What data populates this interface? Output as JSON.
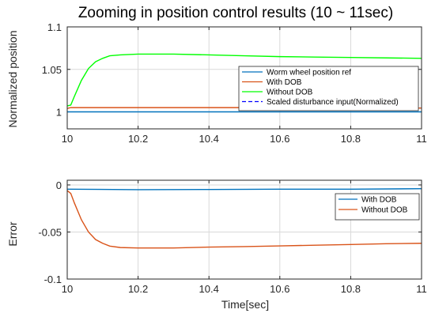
{
  "figure": {
    "title": "Zooming in position control results (10 ~ 11sec)"
  },
  "chart_data": [
    {
      "type": "line",
      "ylabel": "Normalized position",
      "xlabel": "",
      "xlim": [
        10,
        11
      ],
      "ylim": [
        0.98,
        1.1
      ],
      "x_ticks": [
        "10",
        "10.2",
        "10.4",
        "10.6",
        "10.8",
        "11"
      ],
      "y_ticks": [
        {
          "value": 1,
          "label": "1"
        },
        {
          "value": 1.05,
          "label": "1.05"
        },
        {
          "value": 1.1,
          "label": "1.1"
        }
      ],
      "grid": true,
      "legend": "right",
      "series": [
        {
          "name": "Worm wheel position ref",
          "color": "#0072bd",
          "dash": false,
          "x": [
            10,
            11
          ],
          "y": [
            1.0,
            1.0
          ]
        },
        {
          "name": "With DOB",
          "color": "#d95319",
          "dash": false,
          "x": [
            10,
            10.01,
            10.03,
            10.1,
            10.2,
            10.4,
            10.6,
            10.8,
            11
          ],
          "y": [
            1.004,
            1.005,
            1.005,
            1.005,
            1.005,
            1.005,
            1.005,
            1.0045,
            1.0045
          ]
        },
        {
          "name": "Without DOB",
          "color": "#00ff00",
          "dash": false,
          "x": [
            10,
            10.01,
            10.02,
            10.04,
            10.06,
            10.08,
            10.1,
            10.12,
            10.15,
            10.2,
            10.3,
            10.4,
            10.5,
            10.6,
            10.7,
            10.8,
            10.9,
            11
          ],
          "y": [
            1.007,
            1.008,
            1.018,
            1.037,
            1.051,
            1.059,
            1.063,
            1.066,
            1.067,
            1.068,
            1.068,
            1.067,
            1.066,
            1.065,
            1.0645,
            1.064,
            1.0635,
            1.063
          ]
        },
        {
          "name": "Scaled disturbance input(Normalized)",
          "color": "#0000ff",
          "dash": true,
          "x": [],
          "y": []
        }
      ]
    },
    {
      "type": "line",
      "ylabel": "Error",
      "xlabel": "Time[sec]",
      "xlim": [
        10,
        11
      ],
      "ylim": [
        -0.1,
        0.005
      ],
      "x_ticks": [
        "10",
        "10.2",
        "10.4",
        "10.6",
        "10.8",
        "11"
      ],
      "y_ticks": [
        {
          "value": 0,
          "label": "0"
        },
        {
          "value": -0.05,
          "label": "-0.05"
        },
        {
          "value": -0.1,
          "label": "-0.1"
        }
      ],
      "grid": true,
      "legend": "right",
      "series": [
        {
          "name": "With DOB",
          "color": "#0072bd",
          "dash": false,
          "x": [
            10,
            10.2,
            10.4,
            10.6,
            10.8,
            11
          ],
          "y": [
            -0.0045,
            -0.005,
            -0.0048,
            -0.0045,
            -0.0045,
            -0.004
          ]
        },
        {
          "name": "Without DOB",
          "color": "#d95319",
          "dash": false,
          "x": [
            10,
            10.01,
            10.02,
            10.04,
            10.06,
            10.08,
            10.1,
            10.12,
            10.15,
            10.2,
            10.3,
            10.4,
            10.5,
            10.6,
            10.7,
            10.8,
            10.9,
            11
          ],
          "y": [
            -0.006,
            -0.009,
            -0.019,
            -0.037,
            -0.05,
            -0.058,
            -0.062,
            -0.065,
            -0.0665,
            -0.067,
            -0.067,
            -0.066,
            -0.0655,
            -0.0648,
            -0.064,
            -0.0633,
            -0.0625,
            -0.062
          ]
        }
      ]
    }
  ]
}
